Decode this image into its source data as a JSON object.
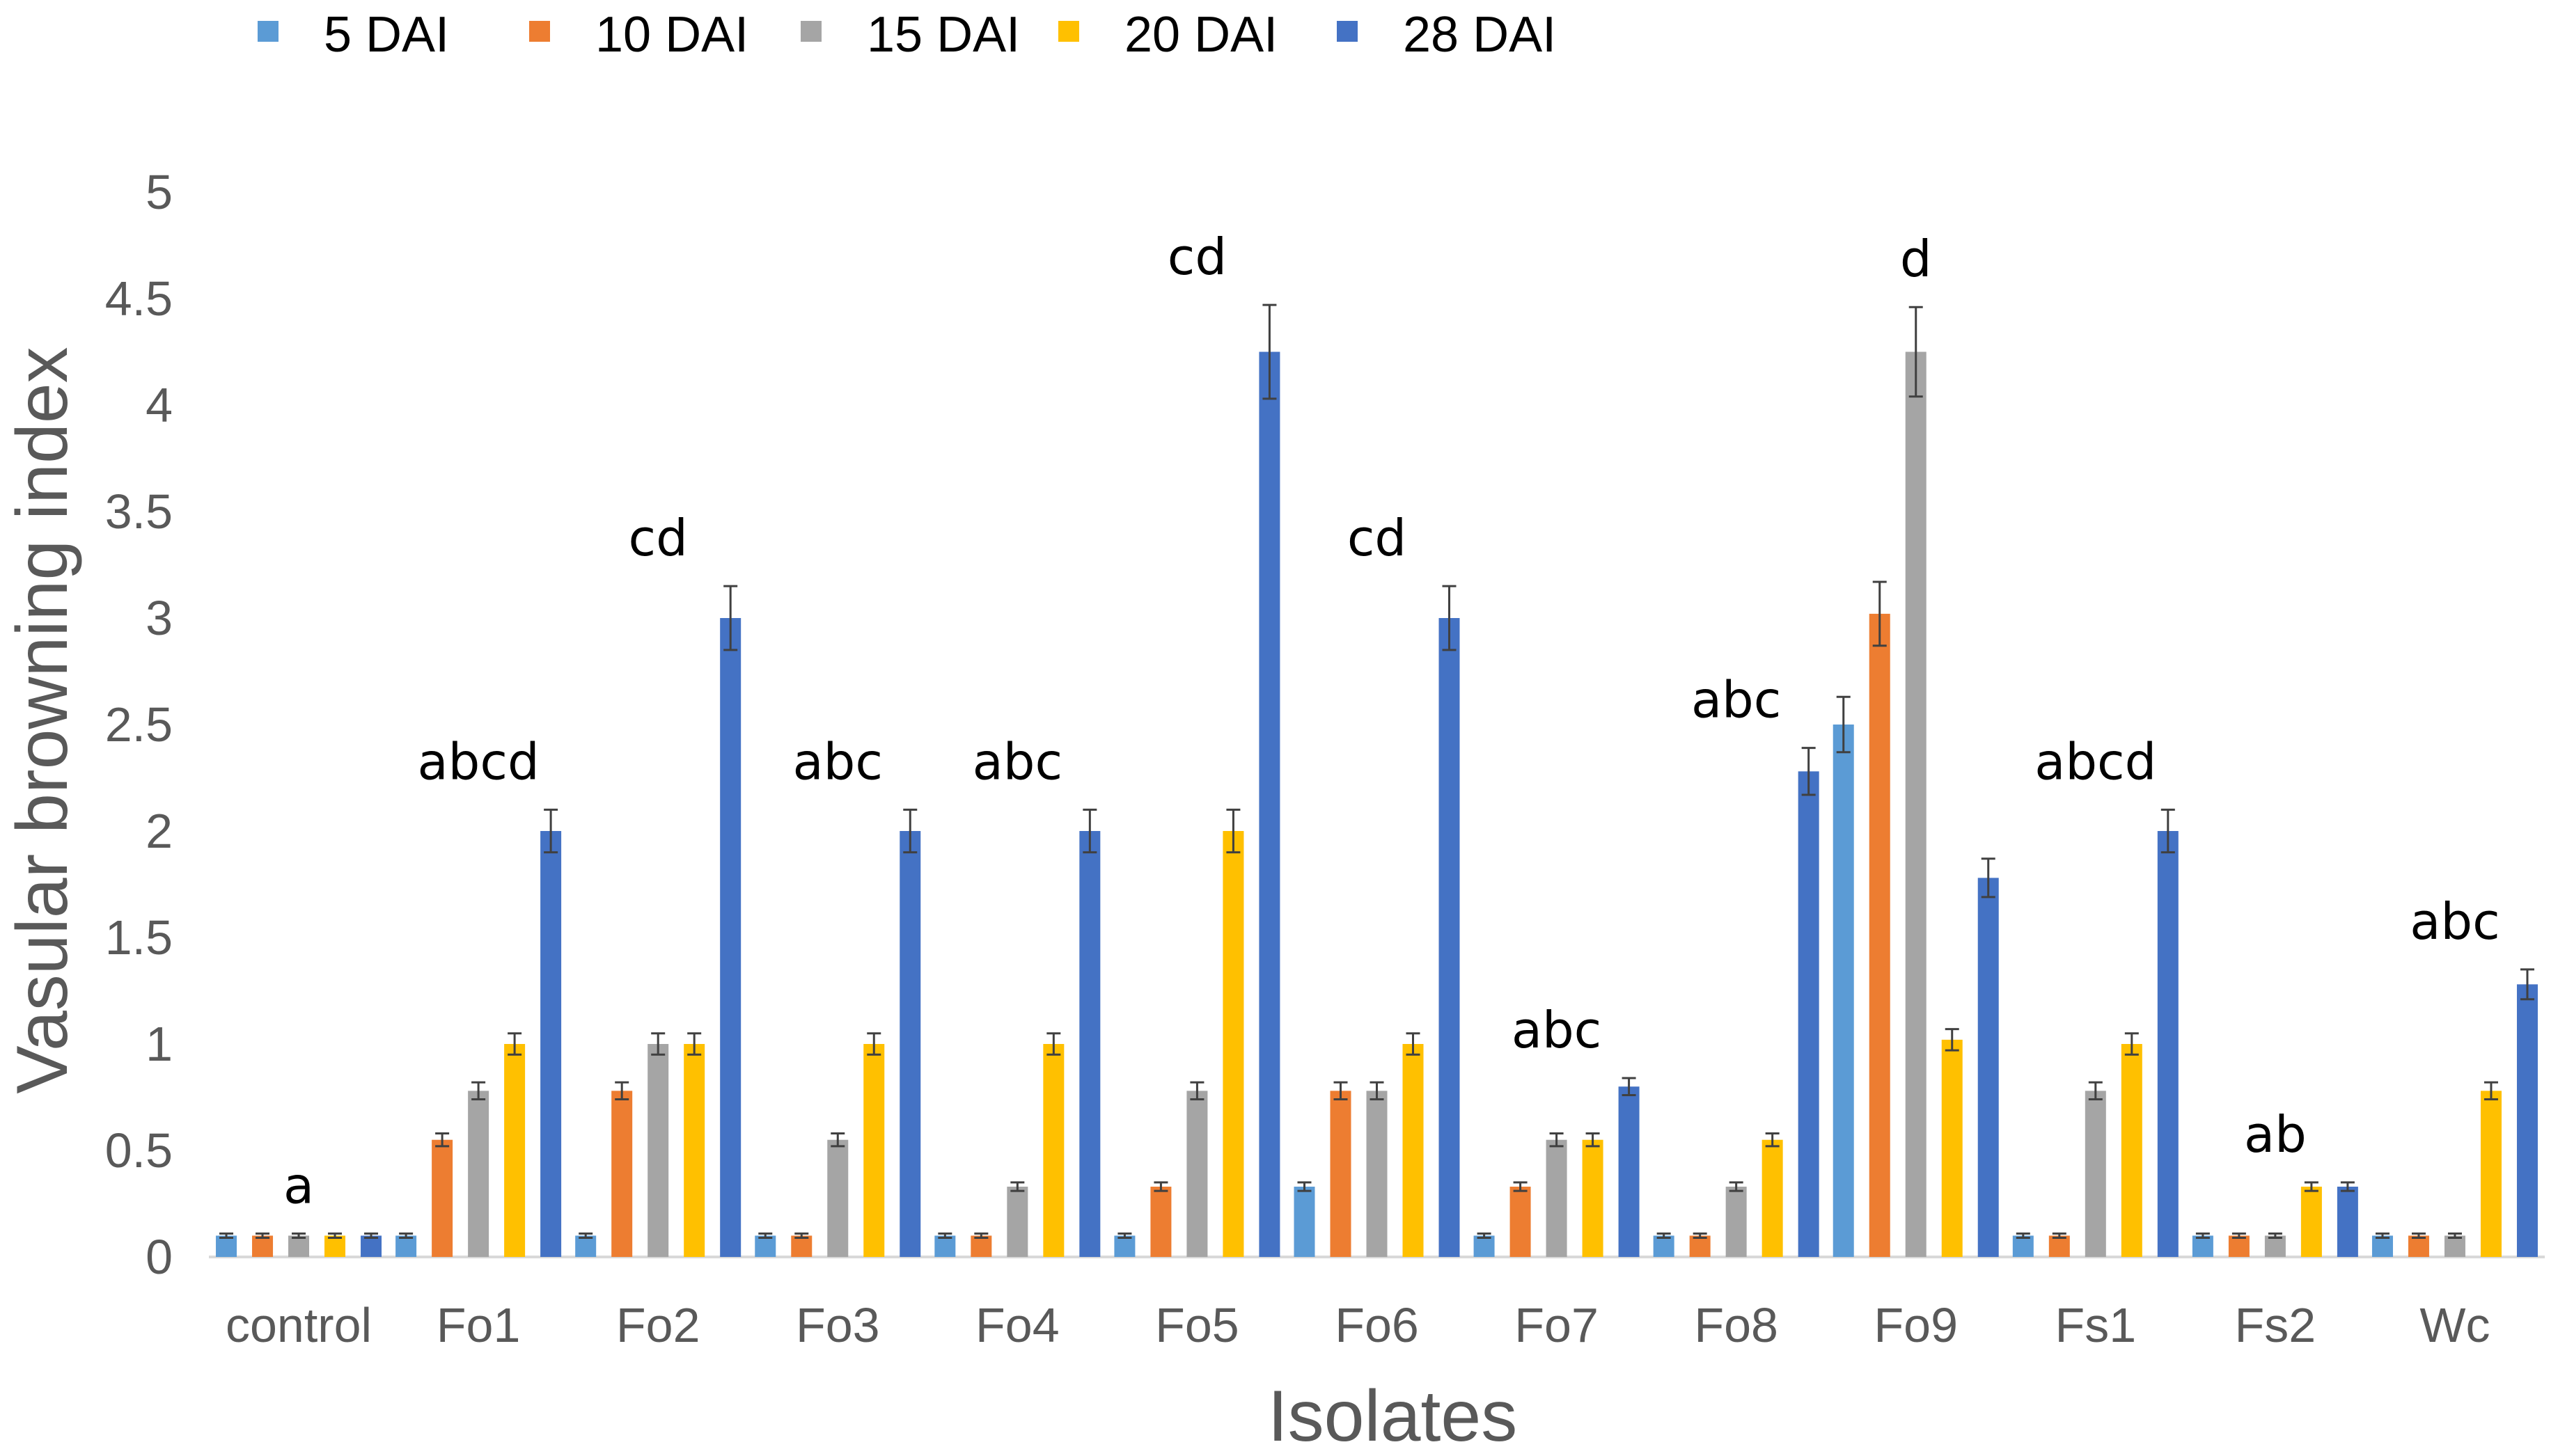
{
  "chart_data": {
    "type": "bar",
    "xlabel": "Isolates",
    "ylabel": "Vasular browning index",
    "ylim": [
      0,
      5
    ],
    "yticks": [
      "0",
      "0.5",
      "1",
      "1.5",
      "2",
      "2.5",
      "3",
      "3.5",
      "4",
      "4.5",
      "5"
    ],
    "grid": false,
    "legend_position": "top-left",
    "categories": [
      "control",
      "Fo1",
      "Fo2",
      "Fo3",
      "Fo4",
      "Fo5",
      "Fo6",
      "Fo7",
      "Fo8",
      "Fo9",
      "Fs1",
      "Fs2",
      "Wc"
    ],
    "series": [
      {
        "name": "5 DAI",
        "color": "#5B9BD5",
        "values": [
          0.1,
          0.1,
          0.1,
          0.1,
          0.1,
          0.1,
          0.33,
          0.1,
          0.1,
          2.5,
          0.1,
          0.1,
          0.1
        ],
        "errors": [
          0.01,
          0.01,
          0.01,
          0.01,
          0.01,
          0.01,
          0.02,
          0.01,
          0.01,
          0.13,
          0.01,
          0.01,
          0.01
        ]
      },
      {
        "name": "10 DAI",
        "color": "#ED7D31",
        "values": [
          0.1,
          0.55,
          0.78,
          0.1,
          0.1,
          0.33,
          0.78,
          0.33,
          0.1,
          3.02,
          0.1,
          0.1,
          0.1
        ],
        "errors": [
          0.01,
          0.03,
          0.04,
          0.01,
          0.01,
          0.02,
          0.04,
          0.02,
          0.01,
          0.15,
          0.01,
          0.01,
          0.01
        ]
      },
      {
        "name": "15 DAI",
        "color": "#A5A5A5",
        "values": [
          0.1,
          0.78,
          1.0,
          0.55,
          0.33,
          0.78,
          0.78,
          0.55,
          0.33,
          4.25,
          0.78,
          0.1,
          0.1
        ],
        "errors": [
          0.01,
          0.04,
          0.05,
          0.03,
          0.02,
          0.04,
          0.04,
          0.03,
          0.02,
          0.21,
          0.04,
          0.01,
          0.01
        ]
      },
      {
        "name": "20 DAI",
        "color": "#FFC000",
        "values": [
          0.1,
          1.0,
          1.0,
          1.0,
          1.0,
          2.0,
          1.0,
          0.55,
          0.55,
          1.02,
          1.0,
          0.33,
          0.78
        ],
        "errors": [
          0.01,
          0.05,
          0.05,
          0.05,
          0.05,
          0.1,
          0.05,
          0.03,
          0.03,
          0.05,
          0.05,
          0.02,
          0.04
        ]
      },
      {
        "name": "28 DAI",
        "color": "#4472C4",
        "values": [
          0.1,
          2.0,
          3.0,
          2.0,
          2.0,
          4.25,
          3.0,
          0.8,
          2.28,
          1.78,
          2.0,
          0.33,
          1.28
        ],
        "errors": [
          0.01,
          0.1,
          0.15,
          0.1,
          0.1,
          0.22,
          0.15,
          0.04,
          0.11,
          0.09,
          0.1,
          0.02,
          0.07
        ]
      }
    ],
    "annotations": [
      "a",
      "abcd",
      "cd",
      "abc",
      "abc",
      "cd",
      "cd",
      "abc",
      "abc",
      "d",
      "abcd",
      "ab",
      "abc"
    ]
  }
}
